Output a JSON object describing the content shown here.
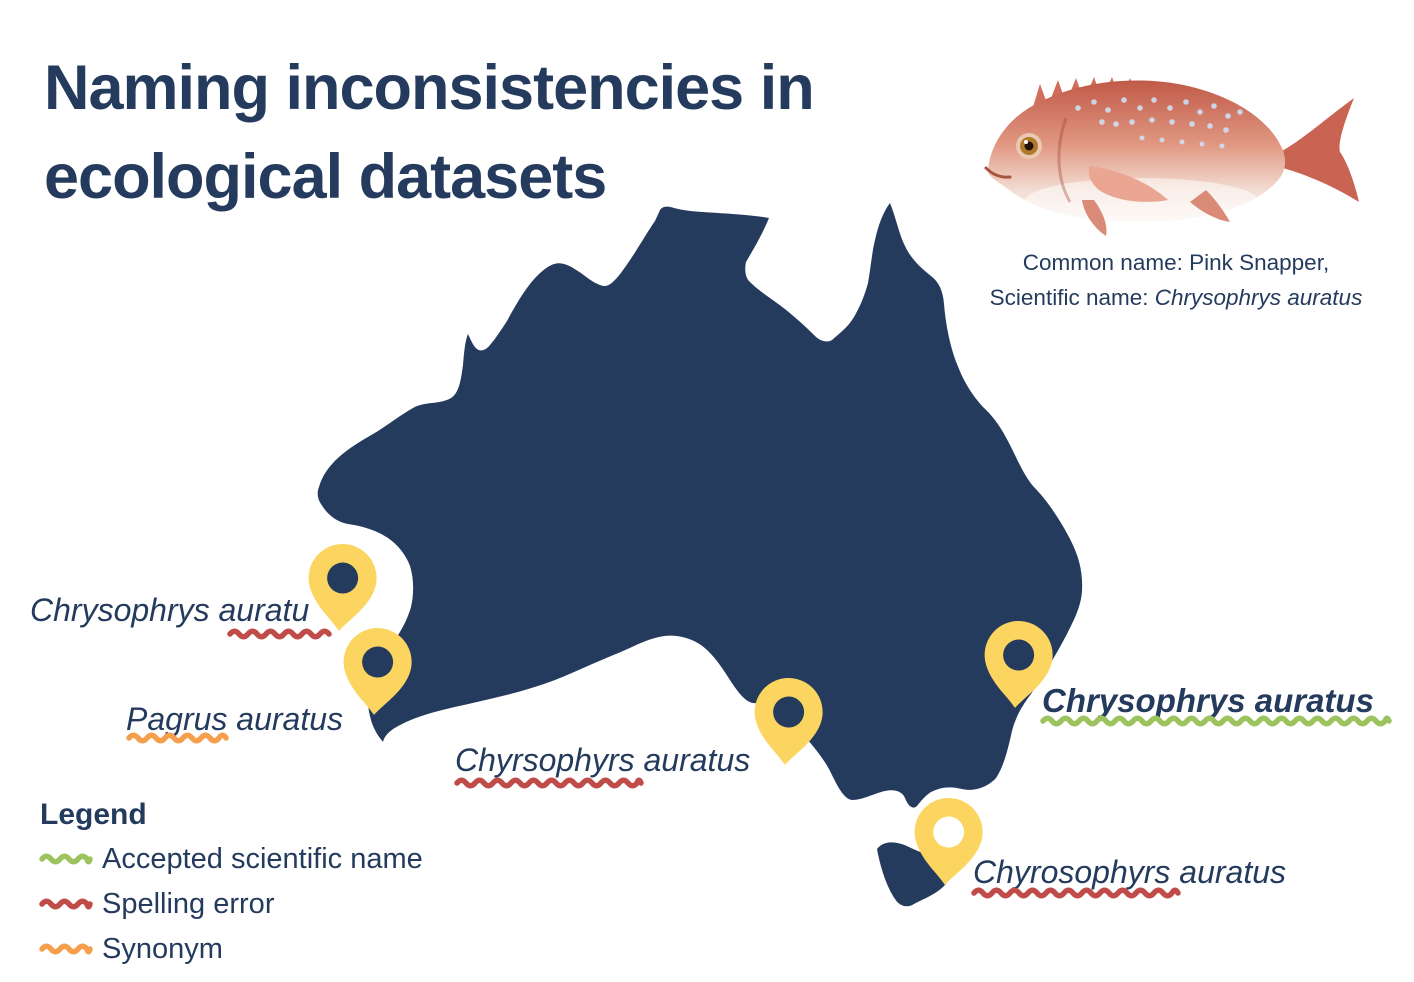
{
  "title": {
    "line1": "Naming inconsistencies in",
    "line2": "ecological datasets"
  },
  "fish": {
    "image_alt": "pink-snapper-illustration",
    "caption_line1": "Common name: Pink Snapper,",
    "caption_line2_prefix": "Scientific name: ",
    "caption_line2_name": "Chrysophrys auratus"
  },
  "map": {
    "region_name": "Australia"
  },
  "markers": [
    {
      "location": "west-coast",
      "label": "Chrysophrys auratu",
      "issue_type": "spelling-error",
      "underline_color_key": "red",
      "underline_extent": "under 'auratu'"
    },
    {
      "location": "south-west-coast",
      "label": "Pagrus auratus",
      "issue_type": "synonym",
      "underline_color_key": "orange",
      "underline_extent": "under 'Pagrus'"
    },
    {
      "location": "south-coast",
      "label": "Chyrsophyrs auratus",
      "issue_type": "spelling-error",
      "underline_color_key": "red",
      "underline_extent": "under 'Chyrsophyrs'"
    },
    {
      "location": "east-coast",
      "label": "Chrysophrys auratus",
      "issue_type": "accepted-scientific-name",
      "underline_color_key": "green",
      "underline_extent": "full"
    },
    {
      "location": "tasmania",
      "label": "Chyrosophyrs auratus",
      "issue_type": "spelling-error",
      "underline_color_key": "red",
      "underline_extent": "under 'Chyrosophyrs'"
    }
  ],
  "legend": {
    "heading": "Legend",
    "items": [
      {
        "label": "Accepted scientific name",
        "color_key": "green"
      },
      {
        "label": "Spelling error",
        "color_key": "red"
      },
      {
        "label": "Synonym",
        "color_key": "orange"
      }
    ]
  },
  "colors": {
    "navy": "#253b5e",
    "yellow": "#fbd55f",
    "red": "#bf4c49",
    "orange": "#f59e4b",
    "green": "#9dc35f"
  }
}
